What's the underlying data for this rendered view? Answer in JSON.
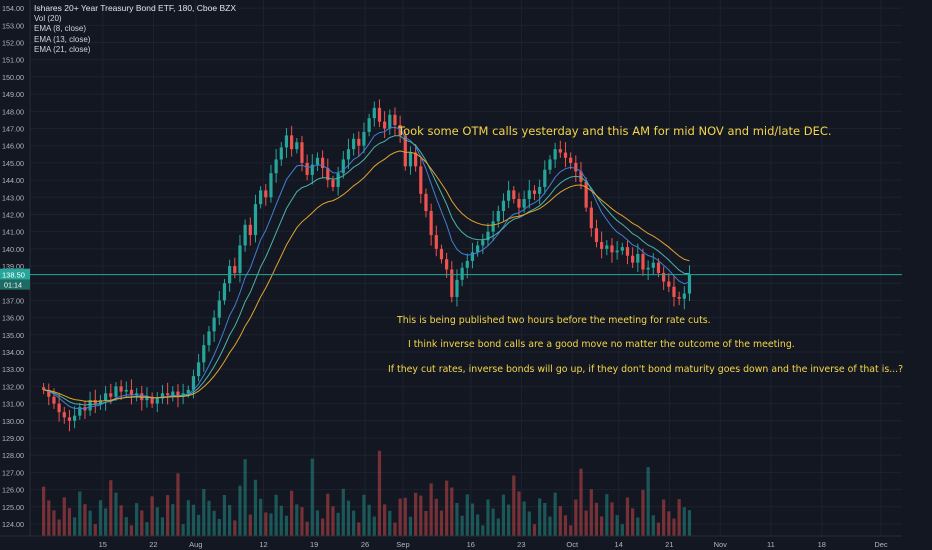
{
  "header": {
    "title": "Ishares 20+ Year Treasury Bond ETF, 180, Cboe BZX",
    "indicators": [
      "Vol (20)",
      "EMA (8, close)",
      "EMA (13, close)",
      "EMA (21, close)"
    ]
  },
  "price_tag": {
    "price": "138.50",
    "countdown": "01:14"
  },
  "annotations": [
    "Took some OTM calls yesterday and this AM for mid NOV and mid/late DEC.",
    "This is being published two hours before the meeting for rate cuts.",
    "I think inverse bond calls are a good move no matter the outcome of the meeting.",
    "If they cut rates, inverse bonds will go up, if they don't bond maturity goes down and the inverse of that is...?"
  ],
  "colors": {
    "background": "#131722",
    "grid": "#1e2230",
    "up": "#26a69a",
    "down": "#ef5350",
    "ema8": "#3f7fd4",
    "ema13": "#4cb3a9",
    "ema21": "#e0a32e",
    "price_line": "#26a69a",
    "text": "#b2b5be",
    "annotation": "#f5d547"
  },
  "chart_data": {
    "type": "candlestick",
    "title": "Ishares 20+ Year Treasury Bond ETF, 180, Cboe BZX",
    "ylim": [
      123.3,
      154.3
    ],
    "y_ticks": [
      "124.00",
      "125.00",
      "126.00",
      "127.00",
      "128.00",
      "129.00",
      "130.00",
      "131.00",
      "132.00",
      "133.00",
      "134.00",
      "135.00",
      "136.00",
      "137.00",
      "138.00",
      "139.00",
      "140.00",
      "141.00",
      "142.00",
      "143.00",
      "144.00",
      "145.00",
      "146.00",
      "147.00",
      "148.00",
      "149.00",
      "150.00",
      "151.00",
      "152.00",
      "153.00",
      "154.00"
    ],
    "x_ticks": [
      "15",
      "22",
      "Aug",
      "12",
      "19",
      "26",
      "Sep",
      "16",
      "23",
      "Oct",
      "14",
      "21",
      "Nov",
      "11",
      "18",
      "Dec"
    ],
    "x_tick_positions": [
      11,
      12.71,
      14.14,
      16.43,
      18.14,
      19.86,
      21.14,
      23.43,
      25.14,
      26.86,
      28.43,
      30.14,
      31.86,
      33.57,
      35.29,
      37.29
    ],
    "x_range": [
      8.54,
      38
    ],
    "grid": true,
    "last_price": 138.5,
    "series_closes": [
      131.8,
      131.4,
      131.0,
      130.5,
      130.2,
      130.0,
      130.3,
      130.8,
      130.6,
      131.2,
      131.0,
      131.2,
      131.6,
      131.4,
      132.0,
      131.7,
      131.8,
      131.5,
      131.6,
      131.2,
      131.4,
      131.0,
      131.3,
      131.6,
      131.5,
      131.7,
      131.4,
      131.6,
      131.8,
      132.6,
      133.4,
      134.4,
      135.2,
      136.0,
      137.0,
      138.0,
      139.0,
      138.6,
      140.2,
      141.4,
      140.8,
      142.6,
      143.4,
      143.0,
      144.4,
      145.2,
      145.9,
      146.6,
      145.8,
      146.2,
      145.0,
      144.3,
      144.9,
      145.3,
      144.7,
      144.0,
      143.6,
      144.4,
      145.2,
      145.8,
      146.4,
      146.0,
      146.8,
      147.6,
      148.2,
      147.4,
      147.0,
      147.8,
      147.2,
      146.6,
      144.8,
      145.6,
      144.8,
      143.2,
      142.2,
      140.8,
      140.0,
      139.4,
      138.8,
      137.2,
      138.2,
      138.9,
      139.3,
      139.8,
      140.2,
      140.5,
      141.0,
      141.6,
      142.2,
      142.8,
      143.4,
      142.9,
      142.4,
      142.9,
      143.4,
      143.2,
      143.6,
      144.6,
      145.2,
      145.8,
      145.6,
      145.3,
      145.0,
      144.5,
      143.9,
      142.4,
      141.2,
      140.4,
      140.0,
      140.2,
      139.8,
      139.9,
      140.1,
      139.6,
      139.2,
      139.7,
      138.8,
      138.9,
      139.2,
      138.6,
      138.1,
      137.8,
      137.2,
      137.1,
      137.4,
      138.5
    ],
    "series": [
      {
        "name": "EMA (8, close)",
        "color": "#3f7fd4"
      },
      {
        "name": "EMA (13, close)",
        "color": "#4cb3a9"
      },
      {
        "name": "EMA (21, close)",
        "color": "#e0a32e"
      }
    ]
  }
}
